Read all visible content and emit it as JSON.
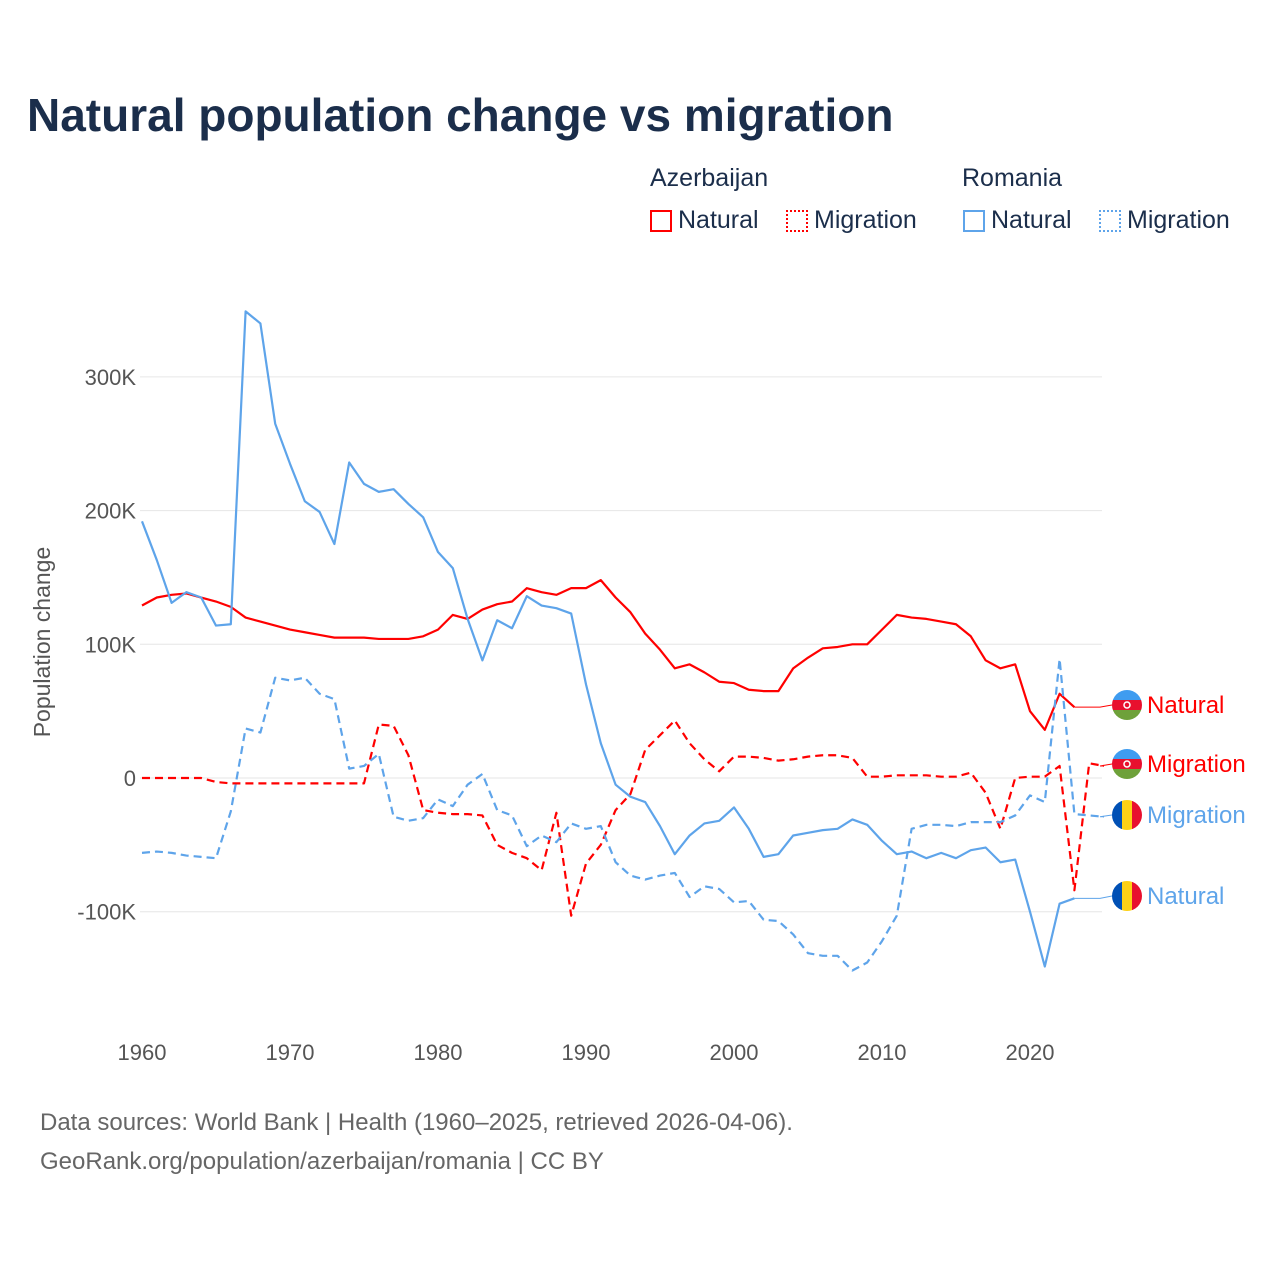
{
  "chart_data": {
    "type": "line",
    "title": "Natural population change vs migration",
    "xlabel": "",
    "ylabel": "Population change",
    "xlim": [
      1960,
      2025
    ],
    "ylim": [
      -160000,
      360000
    ],
    "x_ticks": [
      "1960",
      "1970",
      "1980",
      "1990",
      "2000",
      "2010",
      "2020"
    ],
    "y_ticks": [
      {
        "v": 300000,
        "label": "300K"
      },
      {
        "v": 200000,
        "label": "200K"
      },
      {
        "v": 100000,
        "label": "100K"
      },
      {
        "v": 0,
        "label": "0"
      },
      {
        "v": -100000,
        "label": "-100K"
      }
    ],
    "grid": true,
    "legend": {
      "placement": "top-right",
      "groups": [
        {
          "country": "Azerbaijan",
          "items": [
            "Natural",
            "Migration"
          ]
        },
        {
          "country": "Romania",
          "items": [
            "Natural",
            "Migration"
          ]
        }
      ]
    },
    "start_year": 1960,
    "series": [
      {
        "name": "Azerbaijan Natural",
        "label": "Natural",
        "country": "Azerbaijan",
        "color": "#ff0000",
        "dashed": false,
        "values_k": [
          129,
          135,
          137,
          138,
          135,
          132,
          128,
          120,
          117,
          114,
          111,
          109,
          107,
          105,
          105,
          105,
          104,
          104,
          104,
          106,
          111,
          122,
          119,
          126,
          130,
          132,
          142,
          139,
          137,
          142,
          142,
          148,
          135,
          124,
          108,
          96,
          82,
          85,
          79,
          72,
          71,
          66,
          65,
          65,
          82,
          90,
          97,
          98,
          100,
          100,
          111,
          122,
          120,
          119,
          117,
          115,
          106,
          88,
          82,
          85,
          50,
          36,
          63,
          53
        ]
      },
      {
        "name": "Azerbaijan Migration",
        "label": "Migration",
        "country": "Azerbaijan",
        "color": "#ff0000",
        "dashed": true,
        "values_k": [
          0,
          0,
          0,
          0,
          0,
          -3,
          -4,
          -4,
          -4,
          -4,
          -4,
          -4,
          -4,
          -4,
          -4,
          -4,
          40,
          39,
          17,
          -24,
          -26,
          -27,
          -27,
          -28,
          -50,
          -56,
          -60,
          -69,
          -26,
          -103,
          -64,
          -50,
          -24,
          -12,
          21,
          32,
          43,
          26,
          14,
          5,
          16,
          16,
          15,
          13,
          14,
          16,
          17,
          17,
          15,
          1,
          1,
          2,
          2,
          2,
          1,
          1,
          4,
          -11,
          -38,
          0,
          1,
          1,
          9,
          -84,
          11,
          9
        ]
      },
      {
        "name": "Romania Natural",
        "label": "Natural",
        "country": "Romania",
        "color": "#5ea4ea",
        "dashed": false,
        "values_k": [
          192,
          163,
          131,
          139,
          135,
          114,
          115,
          349,
          340,
          265,
          235,
          207,
          199,
          175,
          236,
          220,
          214,
          216,
          205,
          195,
          169,
          157,
          119,
          88,
          118,
          112,
          136,
          129,
          127,
          123,
          70,
          26,
          -5,
          -14,
          -18,
          -36,
          -57,
          -43,
          -34,
          -32,
          -22,
          -38,
          -59,
          -57,
          -43,
          -41,
          -39,
          -38,
          -31,
          -35,
          -47,
          -57,
          -55,
          -60,
          -56,
          -60,
          -54,
          -52,
          -63,
          -61,
          -100,
          -141,
          -94,
          -90
        ]
      },
      {
        "name": "Romania Migration",
        "label": "Migration",
        "country": "Romania",
        "color": "#5ea4ea",
        "dashed": true,
        "values_k": [
          -56,
          -55,
          -56,
          -58,
          -59,
          -60,
          -25,
          37,
          34,
          75,
          73,
          75,
          63,
          59,
          7,
          9,
          18,
          -29,
          -32,
          -30,
          -16,
          -21,
          -5,
          3,
          -24,
          -28,
          -51,
          -43,
          -48,
          -34,
          -38,
          -36,
          -63,
          -73,
          -76,
          -73,
          -71,
          -89,
          -81,
          -83,
          -93,
          -92,
          -106,
          -107,
          -117,
          -131,
          -133,
          -133,
          -144,
          -138,
          -122,
          -103,
          -38,
          -35,
          -35,
          -36,
          -33,
          -33,
          -33,
          -28,
          -13,
          -18,
          89,
          -27,
          -28,
          -29
        ]
      }
    ]
  },
  "footer": {
    "line1": "Data sources: World Bank | Health (1960–2025, retrieved 2026-04-06).",
    "line2": "GeoRank.org/population/azerbaijan/romania | CC BY"
  }
}
